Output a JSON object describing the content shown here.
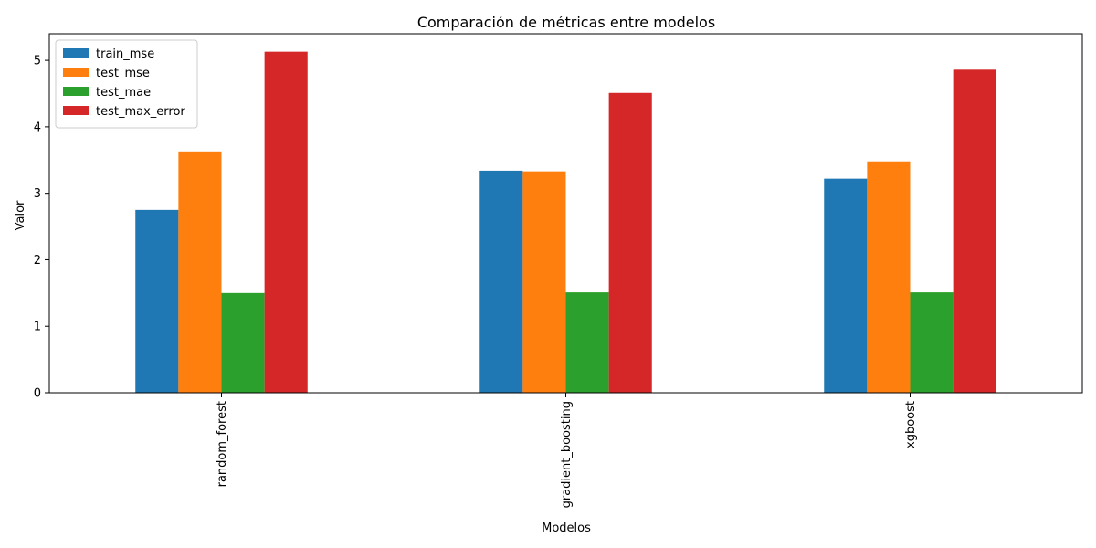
{
  "chart_data": {
    "type": "bar",
    "title": "Comparación de métricas entre modelos",
    "xlabel": "Modelos",
    "ylabel": "Valor",
    "categories": [
      "random_forest",
      "gradient_boosting",
      "xgboost"
    ],
    "series": [
      {
        "name": "train_mse",
        "color": "#1f77b4",
        "values": [
          2.75,
          3.34,
          3.22
        ]
      },
      {
        "name": "test_mse",
        "color": "#ff7f0e",
        "values": [
          3.63,
          3.33,
          3.48
        ]
      },
      {
        "name": "test_mae",
        "color": "#2ca02c",
        "values": [
          1.5,
          1.51,
          1.51
        ]
      },
      {
        "name": "test_max_error",
        "color": "#d62728",
        "values": [
          5.13,
          4.51,
          4.86
        ]
      }
    ],
    "ylim": [
      0,
      5.4
    ],
    "yticks": [
      0,
      1,
      2,
      3,
      4,
      5
    ],
    "grid": false,
    "legend_position": "top-left"
  }
}
